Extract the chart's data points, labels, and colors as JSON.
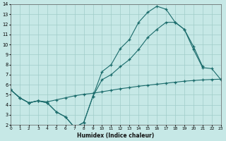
{
  "xlabel": "Humidex (Indice chaleur)",
  "bg_color": "#c6e8e6",
  "grid_color": "#a0ccc8",
  "line_color": "#1a6b6b",
  "xlim": [
    0,
    23
  ],
  "ylim": [
    2,
    14
  ],
  "xtick_vals": [
    0,
    1,
    2,
    3,
    4,
    5,
    6,
    7,
    8,
    9,
    10,
    11,
    12,
    13,
    14,
    15,
    16,
    17,
    18,
    19,
    20,
    21,
    22,
    23
  ],
  "ytick_vals": [
    2,
    3,
    4,
    5,
    6,
    7,
    8,
    9,
    10,
    11,
    12,
    13,
    14
  ],
  "line1_x": [
    0,
    1,
    2,
    3,
    4,
    5,
    6,
    7,
    8,
    9,
    10,
    11,
    12,
    13,
    14,
    15,
    16,
    17,
    18,
    19,
    20,
    21
  ],
  "line1_y": [
    5.5,
    4.7,
    4.2,
    4.4,
    4.2,
    3.3,
    2.8,
    1.75,
    2.25,
    4.85,
    7.3,
    8.0,
    9.6,
    10.5,
    12.2,
    13.2,
    13.8,
    13.5,
    12.2,
    11.5,
    9.8,
    7.8
  ],
  "line2_x": [
    0,
    1,
    2,
    3,
    4,
    5,
    6,
    7,
    8,
    9,
    10,
    11,
    12,
    13,
    14,
    15,
    16,
    17,
    18,
    19,
    20,
    21,
    22,
    23
  ],
  "line2_y": [
    5.5,
    4.7,
    4.2,
    4.4,
    4.2,
    3.3,
    2.8,
    1.75,
    2.25,
    4.85,
    6.5,
    7.0,
    7.8,
    8.5,
    9.5,
    10.7,
    11.5,
    12.2,
    12.2,
    11.5,
    9.5,
    7.7,
    7.6,
    6.5
  ],
  "line3_x": [
    0,
    1,
    2,
    3,
    4,
    5,
    6,
    7,
    8,
    9,
    10,
    11,
    12,
    13,
    14,
    15,
    16,
    17,
    18,
    19,
    20,
    21,
    22,
    23
  ],
  "line3_y": [
    5.5,
    4.7,
    4.2,
    4.4,
    4.3,
    4.5,
    4.7,
    4.9,
    5.05,
    5.15,
    5.3,
    5.45,
    5.6,
    5.72,
    5.85,
    5.95,
    6.05,
    6.15,
    6.25,
    6.35,
    6.42,
    6.48,
    6.52,
    6.55
  ]
}
